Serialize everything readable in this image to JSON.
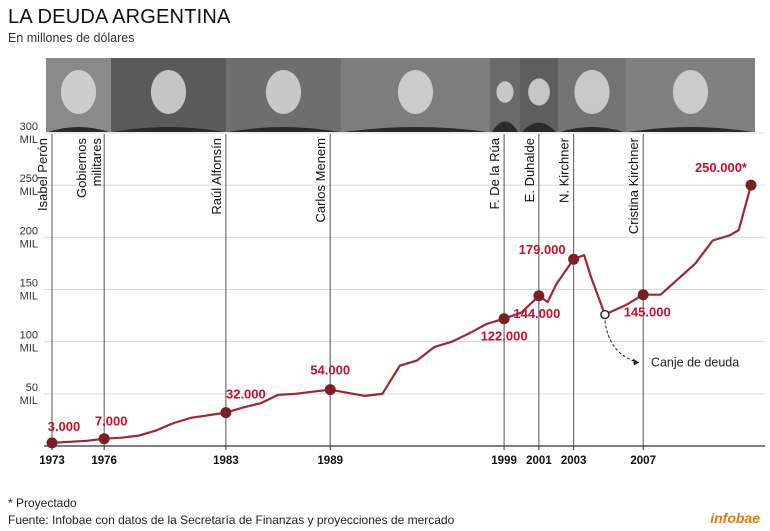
{
  "header": {
    "title": "LA DEUDA ARGENTINA",
    "subtitle": "En millones de dólares"
  },
  "footer": {
    "footnote": "* Proyectado",
    "source": "Fuente: Infobae con datos de la Secretaría de Finanzas y proyecciones de mercado",
    "brand": "infobae"
  },
  "colors": {
    "line": "#9b2a30",
    "point": "#7a1f25",
    "label": "#c8102e",
    "grid": "#d9d9d9",
    "photo_bg": "#4a4a4a"
  },
  "chart_data": {
    "type": "line",
    "title": "LA DEUDA ARGENTINA",
    "subtitle": "En millones de dólares",
    "xlabel": "",
    "ylabel": "",
    "xlim": [
      1973,
      2013.2
    ],
    "ylim": [
      0,
      300000
    ],
    "grid": true,
    "y_ticks": [
      {
        "value": 50000,
        "line1": "50",
        "line2": "MIL"
      },
      {
        "value": 100000,
        "line1": "100",
        "line2": "MIL"
      },
      {
        "value": 150000,
        "line1": "150",
        "line2": "MIL"
      },
      {
        "value": 200000,
        "line1": "200",
        "line2": "MIL"
      },
      {
        "value": 250000,
        "line1": "250",
        "line2": "MIL"
      },
      {
        "value": 300000,
        "line1": "300",
        "line2": "MIL"
      }
    ],
    "x_ticks": [
      1973,
      1976,
      1983,
      1989,
      1999,
      2001,
      2003,
      2007
    ],
    "series": [
      {
        "values": [
          {
            "x": 1973,
            "y": 3000
          },
          {
            "x": 1974,
            "y": 4000
          },
          {
            "x": 1975,
            "y": 5000
          },
          {
            "x": 1976,
            "y": 7000
          },
          {
            "x": 1977,
            "y": 8000
          },
          {
            "x": 1978,
            "y": 10000
          },
          {
            "x": 1979,
            "y": 15000
          },
          {
            "x": 1980,
            "y": 22000
          },
          {
            "x": 1981,
            "y": 27000
          },
          {
            "x": 1983,
            "y": 32000
          },
          {
            "x": 1984,
            "y": 37000
          },
          {
            "x": 1985,
            "y": 41000
          },
          {
            "x": 1986,
            "y": 49000
          },
          {
            "x": 1987,
            "y": 50000
          },
          {
            "x": 1988,
            "y": 52000
          },
          {
            "x": 1989,
            "y": 54000
          },
          {
            "x": 1990,
            "y": 51000
          },
          {
            "x": 1991,
            "y": 48000
          },
          {
            "x": 1992,
            "y": 50000
          },
          {
            "x": 1993,
            "y": 77000
          },
          {
            "x": 1994,
            "y": 82000
          },
          {
            "x": 1995,
            "y": 95000
          },
          {
            "x": 1996,
            "y": 100000
          },
          {
            "x": 1997,
            "y": 108000
          },
          {
            "x": 1998,
            "y": 117000
          },
          {
            "x": 1999,
            "y": 122000
          },
          {
            "x": 2000,
            "y": 128000
          },
          {
            "x": 2001,
            "y": 144000
          },
          {
            "x": 2001.5,
            "y": 138000
          },
          {
            "x": 2002,
            "y": 155000
          },
          {
            "x": 2003,
            "y": 179000
          },
          {
            "x": 2003.6,
            "y": 183000
          },
          {
            "x": 2004,
            "y": 162000
          },
          {
            "x": 2004.8,
            "y": 126000
          },
          {
            "x": 2006,
            "y": 135000
          },
          {
            "x": 2007,
            "y": 145000
          },
          {
            "x": 2008,
            "y": 145000
          },
          {
            "x": 2009,
            "y": 160000
          },
          {
            "x": 2010,
            "y": 175000
          },
          {
            "x": 2011,
            "y": 197000
          },
          {
            "x": 2012,
            "y": 202000
          },
          {
            "x": 2012.5,
            "y": 207000
          },
          {
            "x": 2013.2,
            "y": 250000
          }
        ]
      }
    ],
    "markers": [
      {
        "x": 1973,
        "y": 3000,
        "label": "3.000",
        "pos": "above"
      },
      {
        "x": 1976,
        "y": 7000,
        "label": "7.000",
        "pos": "above"
      },
      {
        "x": 1983,
        "y": 32000,
        "label": "32.000",
        "pos": "above"
      },
      {
        "x": 1989,
        "y": 54000,
        "label": "54.000",
        "pos": "above"
      },
      {
        "x": 1999,
        "y": 122000,
        "label": "122.000",
        "pos": "below"
      },
      {
        "x": 2001,
        "y": 144000,
        "label": "144.000",
        "pos": "below"
      },
      {
        "x": 2003,
        "y": 179000,
        "label": "179.000",
        "pos": "left"
      },
      {
        "x": 2007,
        "y": 145000,
        "label": "145.000",
        "pos": "below"
      },
      {
        "x": 2013.2,
        "y": 250000,
        "label": "250.000*",
        "pos": "aboveleft"
      }
    ],
    "hollow_marker": {
      "x": 2004.8,
      "y": 126000
    },
    "annotation": {
      "text": "Canje de deuda"
    },
    "periods": [
      {
        "name": "Isabel Perón",
        "x": 1973
      },
      {
        "name": "Gobiernos militares",
        "x": 1976
      },
      {
        "name": "Raúl Alfonsín",
        "x": 1983
      },
      {
        "name": "Carlos Menem",
        "x": 1989
      },
      {
        "name": "F. De la Rúa",
        "x": 1999
      },
      {
        "name": "E. Duhalde",
        "x": 2001
      },
      {
        "name": "N. Kirchner",
        "x": 2003
      },
      {
        "name": "Cristina Kirchner",
        "x": 2007
      }
    ]
  }
}
